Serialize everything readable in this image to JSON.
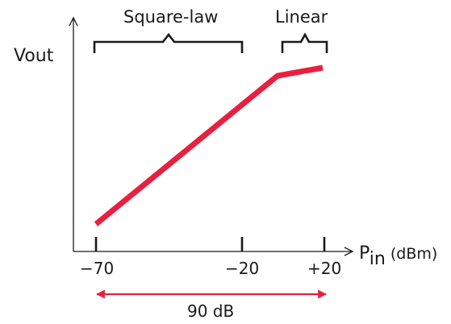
{
  "y_axis_label": "Vout",
  "x_axis": {
    "label_main": "P",
    "label_sub": "in",
    "label_unit": " (dBm)"
  },
  "regions": {
    "square_law": "Square-law",
    "linear": "Linear"
  },
  "ticks": [
    "−70",
    "−20",
    "+20"
  ],
  "span_label": "90 dB",
  "colors": {
    "response_curve": "#e8203f",
    "span_arrow": "#e8203f",
    "ink": "#1a1a1a"
  }
}
